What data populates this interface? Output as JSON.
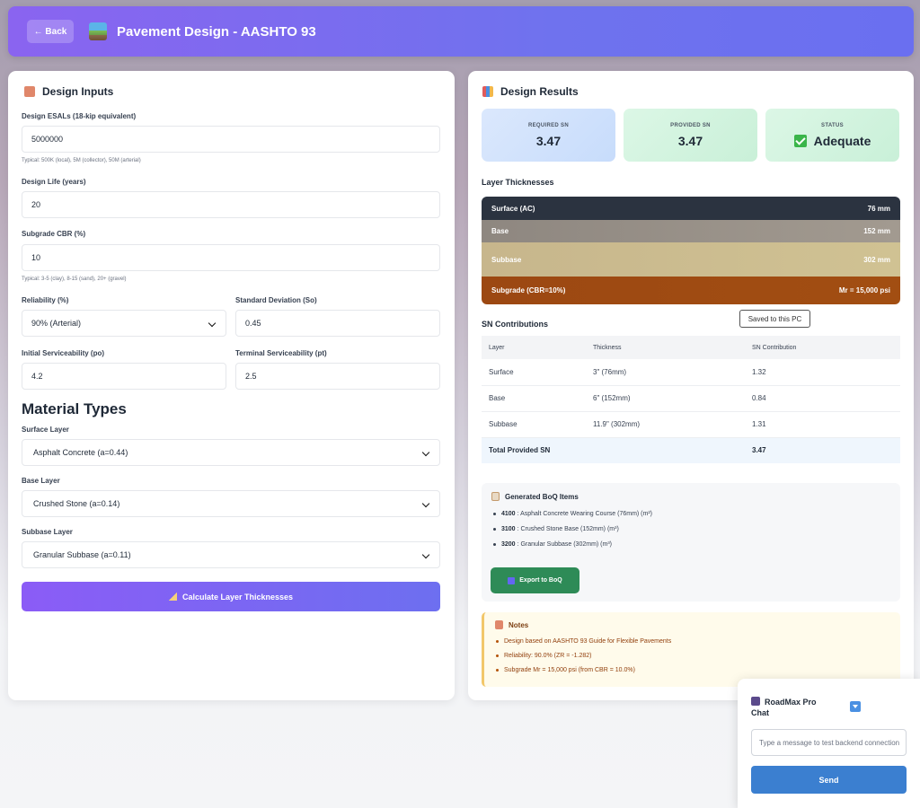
{
  "header": {
    "back_label": "← Back",
    "title": "Pavement Design - AASHTO 93"
  },
  "inputs": {
    "title": "Design Inputs",
    "esals_label": "Design ESALs (18-kip equivalent)",
    "esals_value": "5000000",
    "esals_hint": "Typical: 500K (local), 5M (collector), 50M (arterial)",
    "life_label": "Design Life (years)",
    "life_value": "20",
    "cbr_label": "Subgrade CBR (%)",
    "cbr_value": "10",
    "cbr_hint": "Typical: 3-5 (clay), 8-15 (sand), 20+ (gravel)",
    "reliability_label": "Reliability (%)",
    "reliability_value": "90% (Arterial)",
    "so_label": "Standard Deviation (So)",
    "so_value": "0.45",
    "po_label": "Initial Serviceability (po)",
    "po_value": "4.2",
    "pt_label": "Terminal Serviceability (pt)",
    "pt_value": "2.5"
  },
  "materials": {
    "title": "Material Types",
    "surface_label": "Surface Layer",
    "surface_value": "Asphalt Concrete (a=0.44)",
    "base_label": "Base Layer",
    "base_value": "Crushed Stone (a=0.14)",
    "subbase_label": "Subbase Layer",
    "subbase_value": "Granular Subbase (a=0.11)"
  },
  "calculate_label": "Calculate Layer Thicknesses",
  "results": {
    "title": "Design Results",
    "required_label": "REQUIRED SN",
    "required_value": "3.47",
    "provided_label": "PROVIDED SN",
    "provided_value": "3.47",
    "status_label": "STATUS",
    "status_value": "Adequate"
  },
  "layers_title": "Layer Thicknesses",
  "layers": [
    {
      "name": "Surface (AC)",
      "value": "76 mm",
      "color": "#2b3340"
    },
    {
      "name": "Base",
      "value": "152 mm",
      "color": "#8f8a84"
    },
    {
      "name": "Subbase",
      "value": "302 mm",
      "color": "#c9b98a"
    },
    {
      "name": "Subgrade (CBR=10%)",
      "value": "Mr = 15,000 psi",
      "color": "#a0480f"
    }
  ],
  "tooltip": "Saved to this PC",
  "sn": {
    "title": "SN Contributions",
    "headers": [
      "Layer",
      "Thickness",
      "SN Contribution"
    ],
    "rows": [
      [
        "Surface",
        "3\" (76mm)",
        "1.32"
      ],
      [
        "Base",
        "6\" (152mm)",
        "0.84"
      ],
      [
        "Subbase",
        "11.9\" (302mm)",
        "1.31"
      ]
    ],
    "total_label": "Total Provided SN",
    "total_value": "3.47"
  },
  "boq": {
    "title": "Generated BoQ Items",
    "items": [
      {
        "code": "4100",
        "text": ": Asphalt Concrete Wearing Course (76mm) (m²)"
      },
      {
        "code": "3100",
        "text": ": Crushed Stone Base (152mm) (m³)"
      },
      {
        "code": "3200",
        "text": ": Granular Subbase (302mm) (m³)"
      }
    ],
    "export_label": "Export to BoQ"
  },
  "notes": {
    "title": "Notes",
    "items": [
      "Design based on AASHTO 93 Guide for Flexible Pavements",
      "Reliability: 90.0% (ZR = -1.282)",
      "Subgrade Mr = 15,000 psi (from CBR = 10.0%)"
    ]
  },
  "chat": {
    "title": "RoadMax Pro Chat",
    "placeholder": "Type a message to test backend connection",
    "send_label": "Send"
  }
}
